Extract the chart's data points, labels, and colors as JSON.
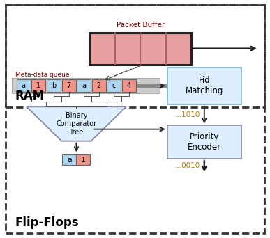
{
  "fig_width": 3.87,
  "fig_height": 3.42,
  "bg_color": "#ffffff",
  "outer_box_color": "#333333",
  "ram_label": "RAM",
  "flipflops_label": "Flip-Flops",
  "packet_buffer_label": "Packet Buffer",
  "metadata_queue_label": "Meta-data queue",
  "fid_matching_label": "Fid\nMatching",
  "priority_encoder_label": "Priority\nEncoder",
  "binary_comparator_label": "Binary\nComparator\nTree",
  "queue_cells": [
    "a",
    "1",
    "b",
    "7",
    "a",
    "2",
    "c",
    "4"
  ],
  "cell_colors_bg": [
    "#aed6f1",
    "#f1948a",
    "#aed6f1",
    "#f1948a",
    "#aed6f1",
    "#f1948a",
    "#aed6f1",
    "#f1948a"
  ],
  "output_cells": [
    "a",
    "1"
  ],
  "output_colors": [
    "#aed6f1",
    "#f1948a"
  ],
  "packet_buffer_fill": "#e8a0a0",
  "packet_buffer_divider": "#b06060",
  "fid_box_edge": "#7fb0d0",
  "fid_box_fill": "#ddeeff",
  "priority_box_edge": "#8888aa",
  "priority_box_fill": "#ddeeff",
  "comparator_fill": "#ddeeff",
  "comparator_edge": "#8888aa",
  "queue_bg": "#cccccc",
  "annotation_1010": "...1010",
  "annotation_0010": "...0010",
  "annotation_color": "#b07800",
  "arrow_color": "#222222",
  "wire_color": "#555555",
  "thick_wire_color": "#888888"
}
